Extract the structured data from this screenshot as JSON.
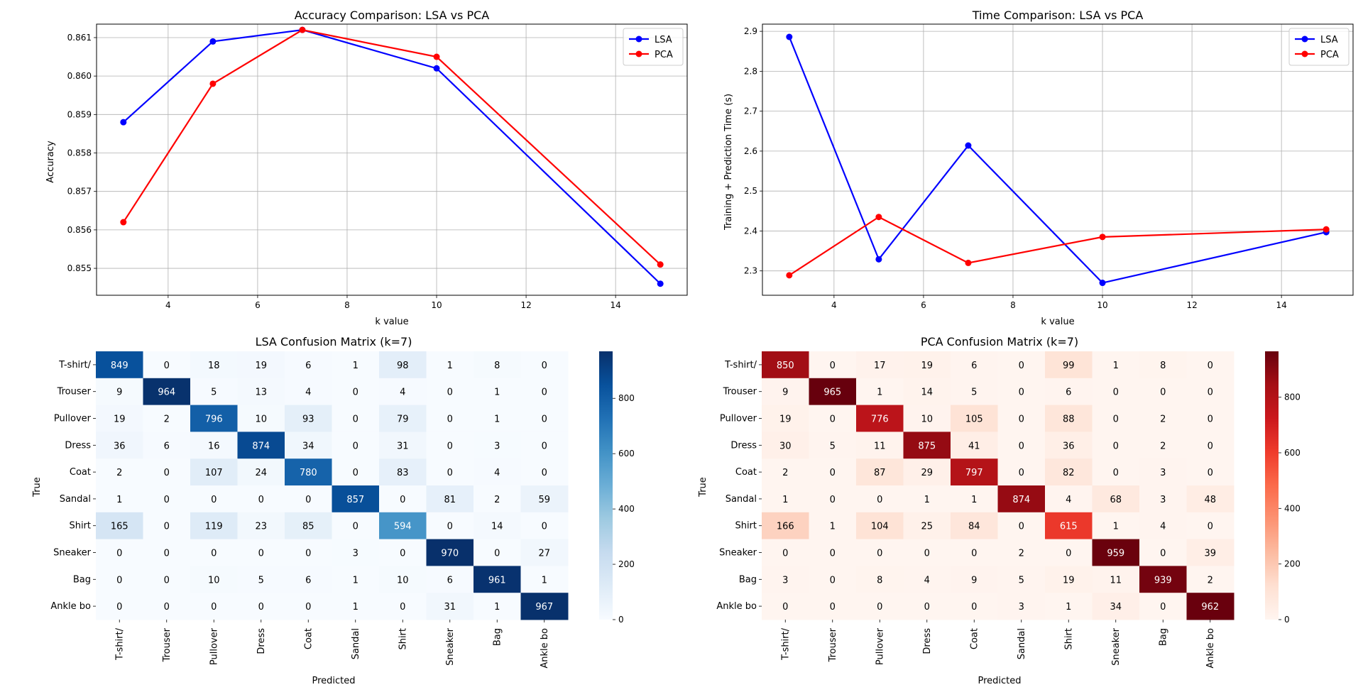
{
  "chart_data": [
    {
      "type": "line",
      "title": "Accuracy Comparison: LSA vs PCA",
      "xlabel": "k value",
      "ylabel": "Accuracy",
      "x": [
        3,
        5,
        7,
        10,
        15
      ],
      "xlim": [
        2.4,
        15.6
      ],
      "ylim": [
        0.8543,
        0.86135
      ],
      "xticks": [
        4,
        6,
        8,
        10,
        12,
        14
      ],
      "yticks": [
        0.855,
        0.856,
        0.857,
        0.858,
        0.859,
        0.86,
        0.861
      ],
      "ytick_decimals": 3,
      "grid": true,
      "legend": "top-right",
      "series": [
        {
          "name": "LSA",
          "color": "#0000ff",
          "values": [
            0.8588,
            0.8609,
            0.8612,
            0.8602,
            0.8546
          ]
        },
        {
          "name": "PCA",
          "color": "#ff0000",
          "values": [
            0.8562,
            0.8598,
            0.8612,
            0.8605,
            0.8551
          ]
        }
      ]
    },
    {
      "type": "line",
      "title": "Time Comparison: LSA vs PCA",
      "xlabel": "k value",
      "ylabel": "Training + Prediction Time (s)",
      "x": [
        3,
        5,
        7,
        10,
        15
      ],
      "xlim": [
        2.4,
        15.6
      ],
      "ylim": [
        2.239,
        2.918
      ],
      "xticks": [
        4,
        6,
        8,
        10,
        12,
        14
      ],
      "yticks": [
        2.3,
        2.4,
        2.5,
        2.6,
        2.7,
        2.8,
        2.9
      ],
      "ytick_decimals": 1,
      "grid": true,
      "legend": "top-right",
      "series": [
        {
          "name": "LSA",
          "color": "#0000ff",
          "values": [
            2.886,
            2.329,
            2.614,
            2.27,
            2.397
          ]
        },
        {
          "name": "PCA",
          "color": "#ff0000",
          "values": [
            2.289,
            2.435,
            2.32,
            2.385,
            2.404
          ]
        }
      ]
    },
    {
      "type": "heatmap",
      "title": "LSA Confusion Matrix (k=7)",
      "xlabel": "Predicted",
      "ylabel": "True",
      "colormap": "Blues",
      "colorbar_ticks": [
        0,
        200,
        400,
        600,
        800
      ],
      "vmin": 0,
      "vmax": 970,
      "labels": [
        "T-shirt/",
        "Trouser",
        "Pullover",
        "Dress",
        "Coat",
        "Sandal",
        "Shirt",
        "Sneaker",
        "Bag",
        "Ankle bo"
      ],
      "matrix": [
        [
          849,
          0,
          18,
          19,
          6,
          1,
          98,
          1,
          8,
          0
        ],
        [
          9,
          964,
          5,
          13,
          4,
          0,
          4,
          0,
          1,
          0
        ],
        [
          19,
          2,
          796,
          10,
          93,
          0,
          79,
          0,
          1,
          0
        ],
        [
          36,
          6,
          16,
          874,
          34,
          0,
          31,
          0,
          3,
          0
        ],
        [
          2,
          0,
          107,
          24,
          780,
          0,
          83,
          0,
          4,
          0
        ],
        [
          1,
          0,
          0,
          0,
          0,
          857,
          0,
          81,
          2,
          59
        ],
        [
          165,
          0,
          119,
          23,
          85,
          0,
          594,
          0,
          14,
          0
        ],
        [
          0,
          0,
          0,
          0,
          0,
          3,
          0,
          970,
          0,
          27
        ],
        [
          0,
          0,
          10,
          5,
          6,
          1,
          10,
          6,
          961,
          1
        ],
        [
          0,
          0,
          0,
          0,
          0,
          1,
          0,
          31,
          1,
          967
        ]
      ]
    },
    {
      "type": "heatmap",
      "title": "PCA Confusion Matrix (k=7)",
      "xlabel": "Predicted",
      "ylabel": "True",
      "colormap": "Reds",
      "colorbar_ticks": [
        0,
        200,
        400,
        600,
        800
      ],
      "vmin": 0,
      "vmax": 965,
      "labels": [
        "T-shirt/",
        "Trouser",
        "Pullover",
        "Dress",
        "Coat",
        "Sandal",
        "Shirt",
        "Sneaker",
        "Bag",
        "Ankle bo"
      ],
      "matrix": [
        [
          850,
          0,
          17,
          19,
          6,
          0,
          99,
          1,
          8,
          0
        ],
        [
          9,
          965,
          1,
          14,
          5,
          0,
          6,
          0,
          0,
          0
        ],
        [
          19,
          0,
          776,
          10,
          105,
          0,
          88,
          0,
          2,
          0
        ],
        [
          30,
          5,
          11,
          875,
          41,
          0,
          36,
          0,
          2,
          0
        ],
        [
          2,
          0,
          87,
          29,
          797,
          0,
          82,
          0,
          3,
          0
        ],
        [
          1,
          0,
          0,
          1,
          1,
          874,
          4,
          68,
          3,
          48
        ],
        [
          166,
          1,
          104,
          25,
          84,
          0,
          615,
          1,
          4,
          0
        ],
        [
          0,
          0,
          0,
          0,
          0,
          2,
          0,
          959,
          0,
          39
        ],
        [
          3,
          0,
          8,
          4,
          9,
          5,
          19,
          11,
          939,
          2
        ],
        [
          0,
          0,
          0,
          0,
          0,
          3,
          1,
          34,
          0,
          962
        ]
      ]
    }
  ]
}
